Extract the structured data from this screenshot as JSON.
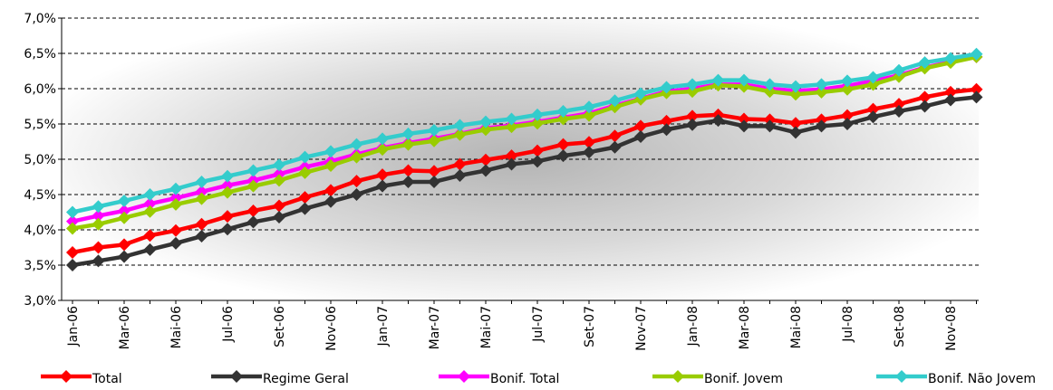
{
  "chart_data": {
    "type": "line",
    "title": "",
    "xlabel": "",
    "ylabel": "",
    "ylim": [
      3.0,
      7.0
    ],
    "y_ticks": [
      "3,0%",
      "3,5%",
      "4,0%",
      "4,5%",
      "5,0%",
      "5,5%",
      "6,0%",
      "6,5%",
      "7,0%"
    ],
    "grid": "horizontal dashed",
    "legend_position": "bottom",
    "categories": [
      "Jan-06",
      "Fev-06",
      "Mar-06",
      "Abr-06",
      "Mai-06",
      "Jun-06",
      "Jul-06",
      "Ago-06",
      "Set-06",
      "Out-06",
      "Nov-06",
      "Dez-06",
      "Jan-07",
      "Fev-07",
      "Mar-07",
      "Abr-07",
      "Mai-07",
      "Jun-07",
      "Jul-07",
      "Ago-07",
      "Set-07",
      "Out-07",
      "Nov-07",
      "Dez-07",
      "Jan-08",
      "Fev-08",
      "Mar-08",
      "Abr-08",
      "Mai-08",
      "Jun-08",
      "Jul-08",
      "Ago-08",
      "Set-08",
      "Out-08",
      "Nov-08",
      "Dez-08"
    ],
    "x_tick_labels": [
      "Jan-06",
      "Mar-06",
      "Mai-06",
      "Jul-06",
      "Set-06",
      "Nov-06",
      "Jan-07",
      "Mar-07",
      "Mai-07",
      "Jul-07",
      "Set-07",
      "Nov-07",
      "Jan-08",
      "Mar-08",
      "Mai-08",
      "Jul-08",
      "Set-08",
      "Nov-08"
    ],
    "series": [
      {
        "name": "Total",
        "color": "#ff0000",
        "values": [
          3.68,
          3.75,
          3.79,
          3.92,
          3.99,
          4.08,
          4.19,
          4.27,
          4.34,
          4.46,
          4.56,
          4.69,
          4.78,
          4.84,
          4.83,
          4.93,
          4.99,
          5.05,
          5.12,
          5.21,
          5.24,
          5.33,
          5.47,
          5.54,
          5.61,
          5.63,
          5.57,
          5.56,
          5.51,
          5.56,
          5.62,
          5.71,
          5.78,
          5.88,
          5.95,
          5.99
        ]
      },
      {
        "name": "Regime Geral",
        "color": "#333333",
        "values": [
          3.5,
          3.56,
          3.62,
          3.72,
          3.81,
          3.91,
          4.01,
          4.11,
          4.18,
          4.3,
          4.4,
          4.5,
          4.62,
          4.68,
          4.68,
          4.77,
          4.84,
          4.93,
          4.97,
          5.05,
          5.1,
          5.17,
          5.32,
          5.42,
          5.49,
          5.55,
          5.47,
          5.47,
          5.38,
          5.47,
          5.5,
          5.6,
          5.68,
          5.75,
          5.84,
          5.88
        ]
      },
      {
        "name": "Bonif. Total",
        "color": "#ff00ff",
        "values": [
          4.12,
          4.2,
          4.27,
          4.37,
          4.45,
          4.54,
          4.63,
          4.7,
          4.79,
          4.89,
          4.97,
          5.07,
          5.16,
          5.23,
          5.29,
          5.36,
          5.44,
          5.48,
          5.53,
          5.59,
          5.65,
          5.76,
          5.86,
          5.96,
          6.0,
          6.06,
          6.06,
          6.0,
          5.97,
          5.99,
          6.04,
          6.11,
          6.19,
          6.3,
          6.38,
          6.45
        ]
      },
      {
        "name": "Bonif. Jovem",
        "color": "#99cc00",
        "values": [
          4.02,
          4.08,
          4.17,
          4.26,
          4.36,
          4.44,
          4.53,
          4.62,
          4.7,
          4.81,
          4.91,
          5.03,
          5.14,
          5.21,
          5.26,
          5.35,
          5.42,
          5.46,
          5.51,
          5.57,
          5.62,
          5.74,
          5.85,
          5.94,
          5.96,
          6.05,
          6.03,
          5.96,
          5.92,
          5.95,
          5.99,
          6.06,
          6.17,
          6.29,
          6.37,
          6.45
        ]
      },
      {
        "name": "Bonif. Não Jovem",
        "color": "#33cccc",
        "values": [
          4.25,
          4.33,
          4.41,
          4.5,
          4.58,
          4.68,
          4.76,
          4.84,
          4.92,
          5.03,
          5.11,
          5.21,
          5.29,
          5.36,
          5.41,
          5.48,
          5.53,
          5.57,
          5.63,
          5.68,
          5.74,
          5.83,
          5.93,
          6.02,
          6.06,
          6.12,
          6.12,
          6.06,
          6.03,
          6.06,
          6.11,
          6.16,
          6.26,
          6.37,
          6.43,
          6.49
        ]
      }
    ]
  }
}
